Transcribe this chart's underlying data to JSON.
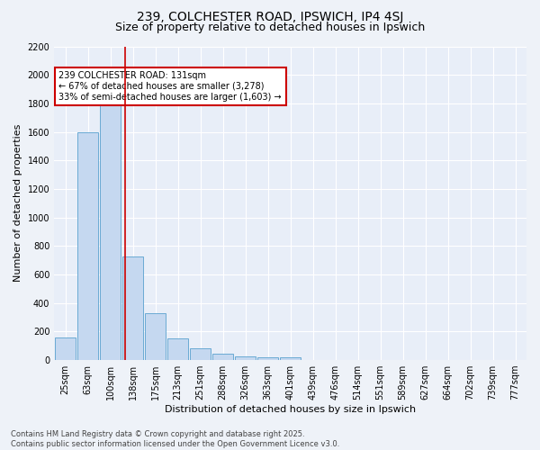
{
  "title1": "239, COLCHESTER ROAD, IPSWICH, IP4 4SJ",
  "title2": "Size of property relative to detached houses in Ipswich",
  "xlabel": "Distribution of detached houses by size in Ipswich",
  "ylabel": "Number of detached properties",
  "bar_labels": [
    "25sqm",
    "63sqm",
    "100sqm",
    "138sqm",
    "175sqm",
    "213sqm",
    "251sqm",
    "288sqm",
    "326sqm",
    "363sqm",
    "401sqm",
    "439sqm",
    "476sqm",
    "514sqm",
    "551sqm",
    "589sqm",
    "627sqm",
    "664sqm",
    "702sqm",
    "739sqm",
    "777sqm"
  ],
  "bar_values": [
    160,
    1600,
    1800,
    725,
    330,
    155,
    80,
    45,
    25,
    20,
    18,
    0,
    0,
    0,
    0,
    0,
    0,
    0,
    0,
    0,
    0
  ],
  "bar_color": "#c5d8f0",
  "bar_edge_color": "#6aaad4",
  "vline_x": 2.67,
  "vline_color": "#cc0000",
  "annotation_text": "239 COLCHESTER ROAD: 131sqm\n← 67% of detached houses are smaller (3,278)\n33% of semi-detached houses are larger (1,603) →",
  "annotation_box_color": "#ffffff",
  "annotation_box_edge": "#cc0000",
  "ylim": [
    0,
    2200
  ],
  "yticks": [
    0,
    200,
    400,
    600,
    800,
    1000,
    1200,
    1400,
    1600,
    1800,
    2000,
    2200
  ],
  "bg_color": "#e8eef8",
  "fig_bg_color": "#eef2f8",
  "footer_line1": "Contains HM Land Registry data © Crown copyright and database right 2025.",
  "footer_line2": "Contains public sector information licensed under the Open Government Licence v3.0.",
  "title1_fontsize": 10,
  "title2_fontsize": 9,
  "axis_label_fontsize": 8,
  "tick_fontsize": 7,
  "annotation_fontsize": 7,
  "footer_fontsize": 6
}
